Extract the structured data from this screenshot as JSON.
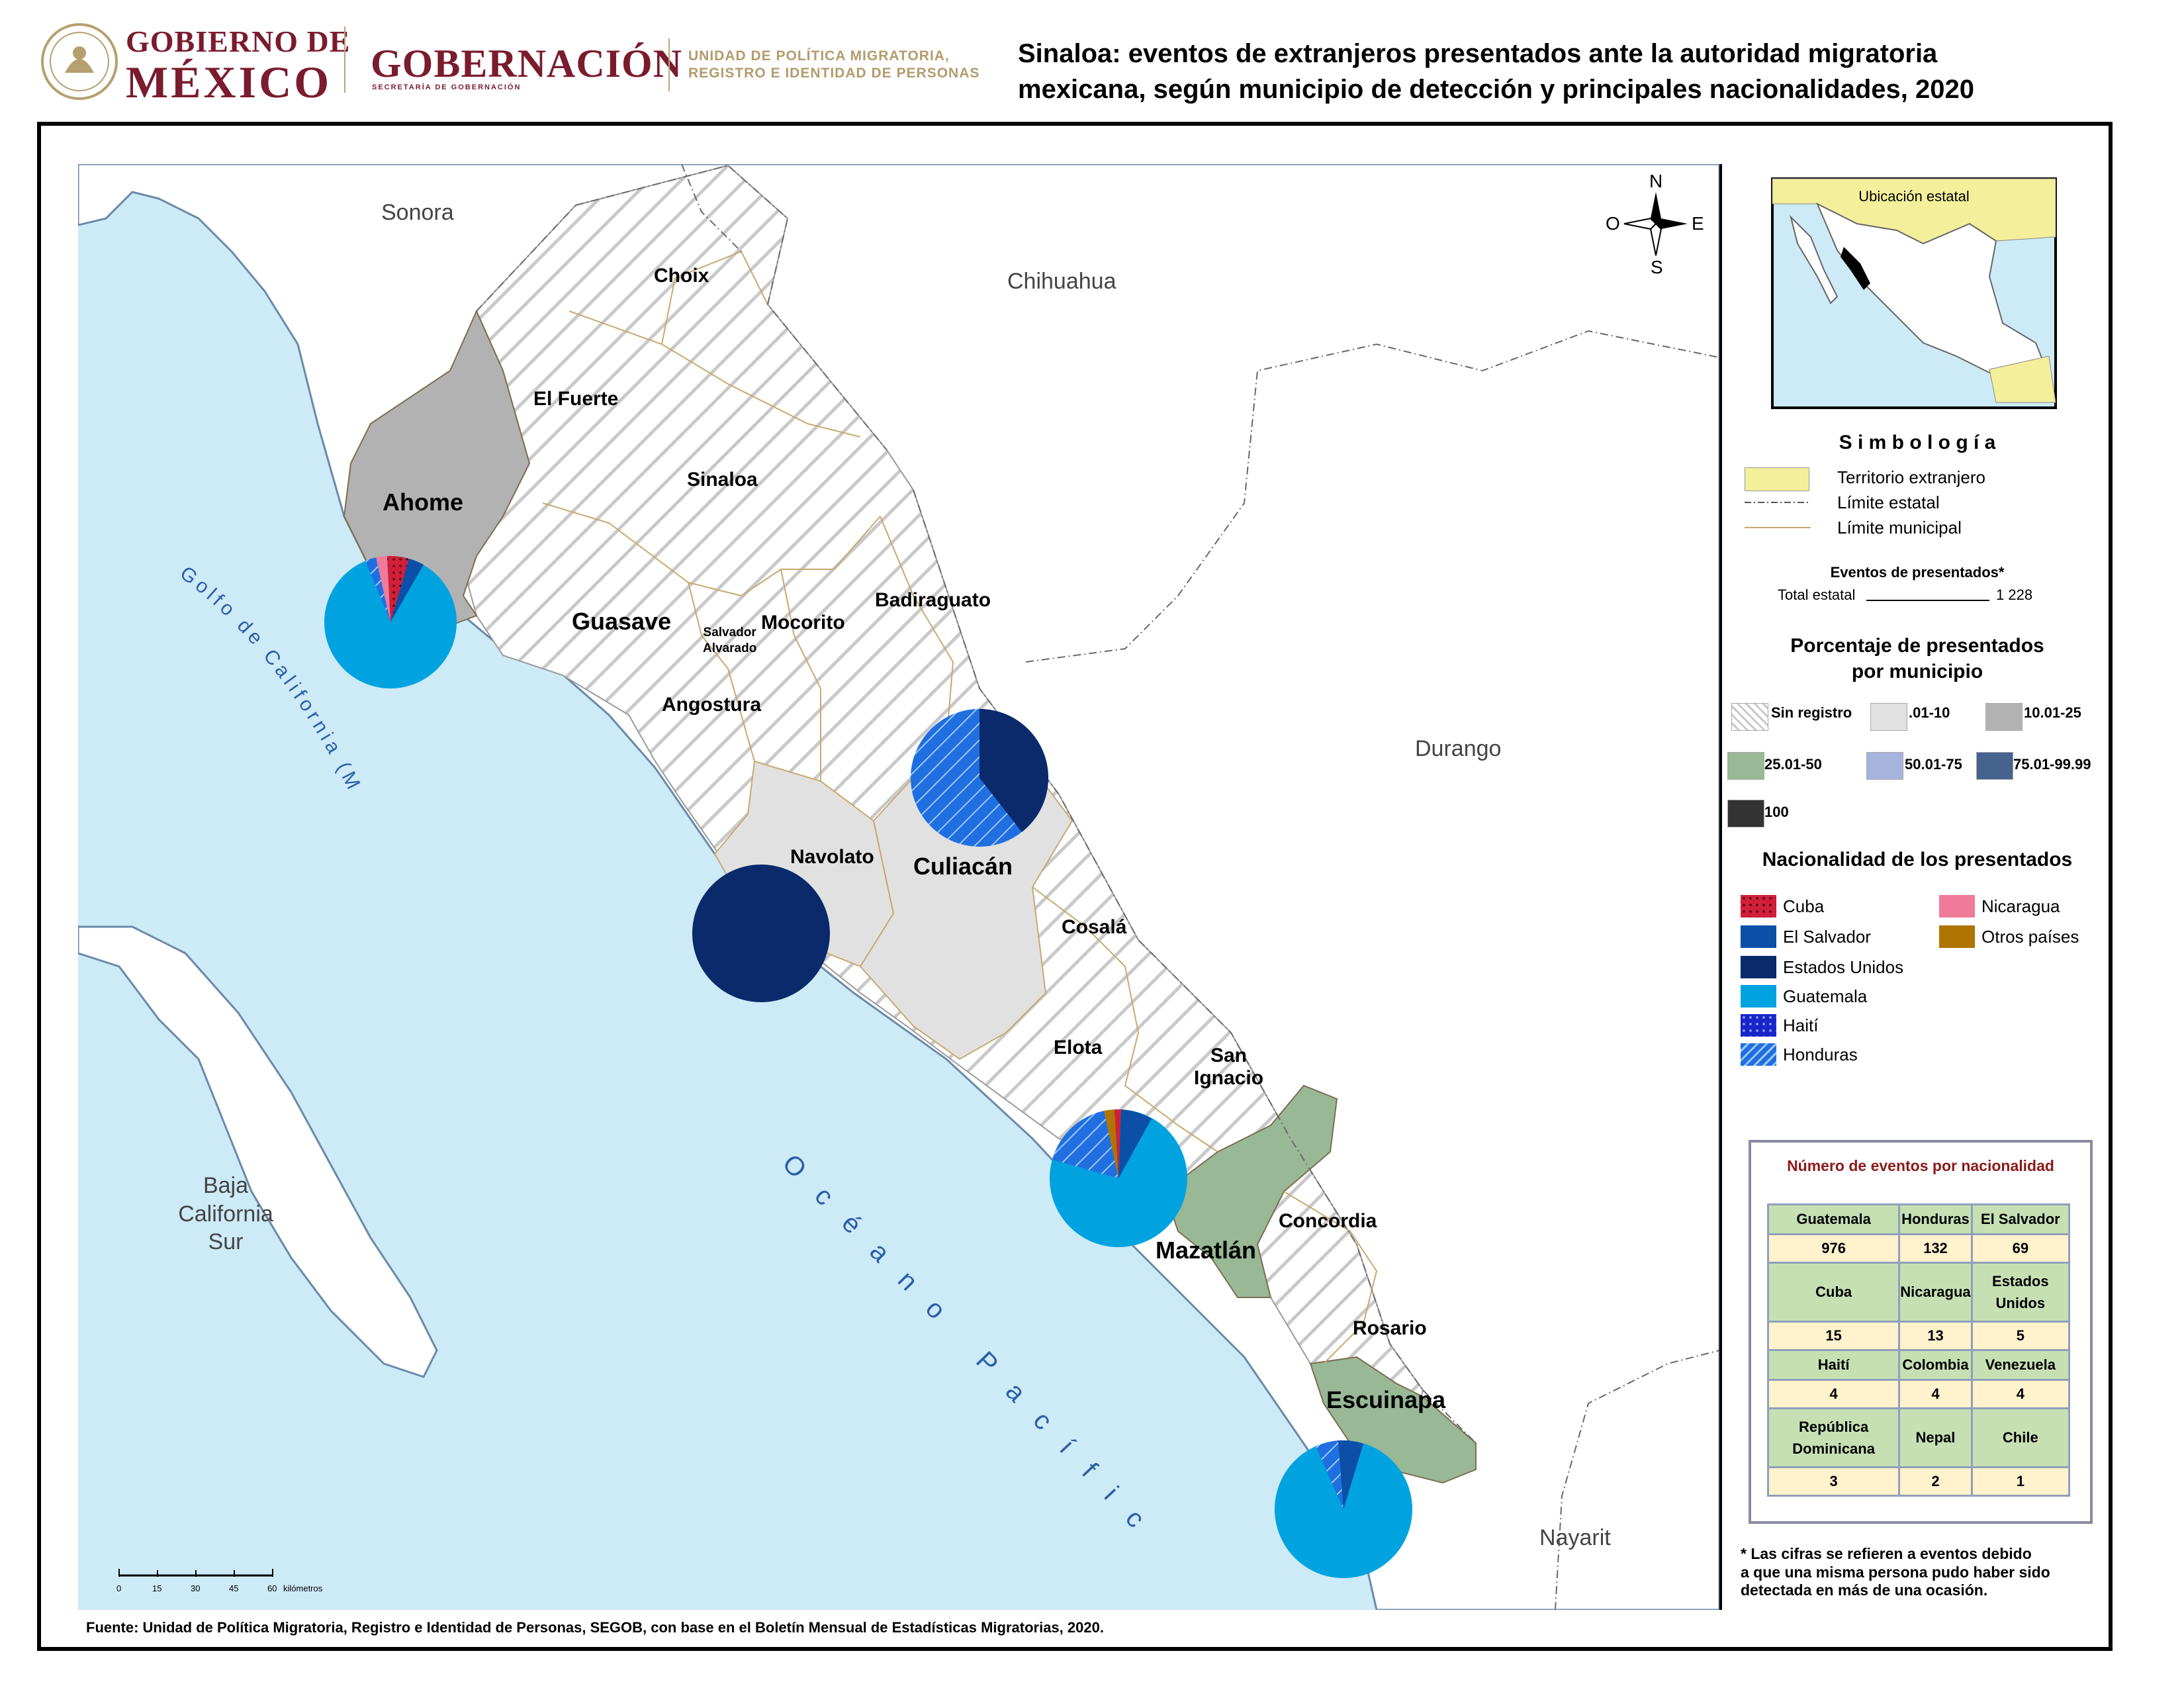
{
  "header": {
    "gov_line1": "GOBIERNO DE",
    "gov_line2": "MÉXICO",
    "dept": "GOBERNACIÓN",
    "dept_sub": "SECRETARÍA DE GOBERNACIÓN",
    "unit_line1": "UNIDAD DE POLÍTICA MIGRATORIA,",
    "unit_line2": "REGISTRO E IDENTIDAD DE PERSONAS",
    "title_line1": "Sinaloa: eventos de extranjeros presentados ante la autoridad migratoria",
    "title_line2": "mexicana, según municipio de detección y principales nacionalidades, 2020"
  },
  "map": {
    "states": {
      "sonora": "Sonora",
      "chihuahua": "Chihuahua",
      "durango": "Durango",
      "nayarit": "Nayarit",
      "bcs_1": "Baja",
      "bcs_2": "California",
      "bcs_3": "Sur"
    },
    "water": {
      "gulf": "Golfo de California (Mar de Cortés)",
      "ocean": "Océano Pacífico"
    },
    "municipalities": {
      "choix": "Choix",
      "el_fuerte": "El Fuerte",
      "sinaloa": "Sinaloa",
      "ahome": "Ahome",
      "guasave": "Guasave",
      "mocorito": "Mocorito",
      "badiraguato": "Badiraguato",
      "salvador_1": "Salvador",
      "salvador_2": "Alvarado",
      "angostura": "Angostura",
      "navolato": "Navolato",
      "culiacan": "Culiacán",
      "cosala": "Cosalá",
      "elota": "Elota",
      "san_ignacio_1": "San",
      "san_ignacio_2": "Ignacio",
      "concordia": "Concordia",
      "mazatlan": "Mazatlán",
      "rosario": "Rosario",
      "escuinapa": "Escuinapa"
    },
    "compass": {
      "n": "N",
      "s": "S",
      "e": "E",
      "o": "O"
    },
    "scale": {
      "ticks": [
        "0",
        "15",
        "30",
        "45",
        "60"
      ],
      "unit": "kilómetros"
    }
  },
  "inset": {
    "title": "Ubicación estatal"
  },
  "legend": {
    "title": "S i m b o l o g í a",
    "items": {
      "foreign": "Territorio extranjero",
      "state_limit": "Límite estatal",
      "muni_limit": "Límite municipal"
    },
    "events_title": "Eventos de presentados*",
    "events_total_label": "Total estatal",
    "events_total_value": "1 228",
    "pct_title_1": "Porcentaje de presentados",
    "pct_title_2": "por municipio",
    "pct_classes": [
      {
        "label": "Sin registro",
        "color": "#ffffff",
        "hatch": true
      },
      {
        "label": ".01-10",
        "color": "#e1e1e1"
      },
      {
        "label": "10.01-25",
        "color": "#b2b2b2"
      },
      {
        "label": "25.01-50",
        "color": "#98b896"
      },
      {
        "label": "50.01-75",
        "color": "#a6b3dc"
      },
      {
        "label": "75.01-99.99",
        "color": "#46628e"
      },
      {
        "label": "100",
        "color": "#333333"
      }
    ],
    "nat_title": "Nacionalidad de los presentados",
    "nationalities": [
      {
        "label": "Cuba",
        "color": "#d11f3a",
        "pattern": "dots"
      },
      {
        "label": "El Salvador",
        "color": "#0b4fa8"
      },
      {
        "label": "Estados Unidos",
        "color": "#0a2a6b"
      },
      {
        "label": "Guatemala",
        "color": "#00a3e0"
      },
      {
        "label": "Haití",
        "color": "#1826c9",
        "pattern": "dots"
      },
      {
        "label": "Honduras",
        "color": "#1f6fe0",
        "pattern": "hatch"
      },
      {
        "label": "Nicaragua",
        "color": "#f07a9a"
      },
      {
        "label": "Otros países",
        "color": "#b07400"
      }
    ]
  },
  "table": {
    "title": "Número de eventos por nacionalidad",
    "rows": [
      {
        "headers": [
          "Guatemala",
          "Honduras",
          "El Salvador"
        ],
        "values": [
          "976",
          "132",
          "69"
        ]
      },
      {
        "headers": [
          "Cuba",
          "Nicaragua",
          "Estados Unidos"
        ],
        "values": [
          "15",
          "13",
          "5"
        ]
      },
      {
        "headers": [
          "Haití",
          "Colombia",
          "Venezuela"
        ],
        "values": [
          "4",
          "4",
          "4"
        ]
      },
      {
        "headers": [
          "República Dominicana",
          "Nepal",
          "Chile"
        ],
        "values": [
          "3",
          "2",
          "1"
        ]
      }
    ]
  },
  "footnote": {
    "line1": "* Las cifras se refieren a eventos debido",
    "line2": "a que una misma persona pudo haber sido",
    "line3": "detectada en más de una ocasión."
  },
  "source": "Fuente: Unidad de Política Migratoria, Registro e Identidad de Personas, SEGOB, con base en el Boletín Mensual de Estadísticas Migratorias, 2020.",
  "colors": {
    "water": "#cdeaf7",
    "land": "#ffffff",
    "foreign": "#f3ef9b",
    "muni_border": "#c9a870"
  }
}
